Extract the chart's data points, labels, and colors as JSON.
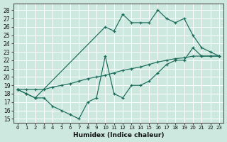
{
  "xlabel": "Humidex (Indice chaleur)",
  "bg_color": "#cce8df",
  "grid_color": "#b0d0c8",
  "line_color": "#1a6b5a",
  "xlim": [
    -0.5,
    23.5
  ],
  "ylim": [
    14.5,
    28.8
  ],
  "xticks": [
    0,
    1,
    2,
    3,
    4,
    5,
    6,
    7,
    8,
    9,
    10,
    11,
    12,
    13,
    14,
    15,
    16,
    17,
    18,
    19,
    20,
    21,
    22,
    23
  ],
  "yticks": [
    15,
    16,
    17,
    18,
    19,
    20,
    21,
    22,
    23,
    24,
    25,
    26,
    27,
    28
  ],
  "line_zigzag_x": [
    0,
    1,
    2,
    3,
    4,
    5,
    6,
    7,
    8,
    9,
    10,
    11,
    12,
    13,
    14,
    15,
    16,
    17,
    18,
    19,
    20,
    21,
    22,
    23
  ],
  "line_zigzag_y": [
    18.5,
    18.0,
    17.5,
    17.5,
    16.5,
    16.0,
    15.5,
    15.0,
    17.0,
    17.5,
    22.5,
    18.0,
    17.5,
    19.0,
    19.0,
    19.5,
    20.5,
    21.5,
    22.0,
    22.0,
    23.5,
    22.5,
    22.5,
    22.5
  ],
  "line_top_x": [
    0,
    1,
    2,
    10,
    11,
    12,
    13,
    14,
    15,
    16,
    17,
    18,
    19,
    20,
    21,
    22,
    23
  ],
  "line_top_y": [
    18.5,
    18.0,
    17.5,
    26.0,
    25.5,
    27.5,
    26.5,
    26.5,
    26.5,
    28.0,
    27.0,
    26.5,
    27.0,
    25.0,
    23.5,
    23.0,
    22.5
  ],
  "line_diag_x": [
    0,
    1,
    2,
    3,
    4,
    5,
    6,
    7,
    8,
    9,
    10,
    11,
    12,
    13,
    14,
    15,
    16,
    17,
    18,
    19,
    20,
    21,
    22,
    23
  ],
  "line_diag_y": [
    18.5,
    18.5,
    18.5,
    18.5,
    18.8,
    19.0,
    19.2,
    19.5,
    19.8,
    20.0,
    20.2,
    20.5,
    20.8,
    21.0,
    21.2,
    21.5,
    21.8,
    22.0,
    22.2,
    22.3,
    22.5,
    22.5,
    22.5,
    22.5
  ]
}
